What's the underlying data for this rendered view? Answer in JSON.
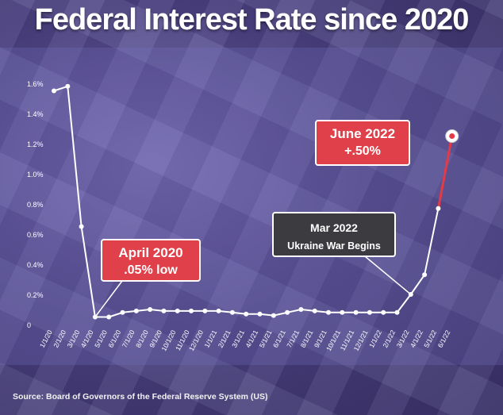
{
  "title": "Federal Interest Rate since 2020",
  "source": "Source: Board of Governors of the Federal Reserve System (US)",
  "colors": {
    "line": "#ffffff",
    "highlight_segment": "#e23a47",
    "callout_red": "#e0404a",
    "callout_dark": "#3b3b40"
  },
  "chart_data": {
    "type": "line",
    "x": [
      "1/1/20",
      "2/1/20",
      "3/1/20",
      "4/1/20",
      "5/1/20",
      "6/1/20",
      "7/1/20",
      "8/1/20",
      "9/1/20",
      "10/1/20",
      "11/1/20",
      "12/1/20",
      "1/1/21",
      "2/1/21",
      "3/1/21",
      "4/1/21",
      "5/1/21",
      "6/1/21",
      "7/1/21",
      "8/1/21",
      "9/1/21",
      "10/1/21",
      "11/1/21",
      "12/1/21",
      "1/1/22",
      "2/1/22",
      "3/1/22",
      "4/1/22",
      "5/1/22",
      "6/1/22"
    ],
    "y": [
      1.55,
      1.58,
      0.65,
      0.05,
      0.05,
      0.08,
      0.09,
      0.1,
      0.09,
      0.09,
      0.09,
      0.09,
      0.09,
      0.08,
      0.07,
      0.07,
      0.06,
      0.08,
      0.1,
      0.09,
      0.08,
      0.08,
      0.08,
      0.08,
      0.08,
      0.08,
      0.2,
      0.33,
      0.77,
      1.25
    ],
    "y_ticks": [
      "1.6%",
      "1.4%",
      "1.2%",
      "1.0%",
      "0.8%",
      "0.6%",
      "0.4%",
      "0.2%",
      "0"
    ],
    "ylim": [
      0,
      1.6
    ],
    "xlabel": "",
    "ylabel": "",
    "annotations": [
      {
        "id": "april2020",
        "line1": "April 2020",
        "line2": ".05% low",
        "style": "red",
        "target_index": 3
      },
      {
        "id": "mar2022",
        "line1": "Mar 2022",
        "line2": "Ukraine War Begins",
        "style": "dark",
        "target_index": 26
      },
      {
        "id": "june2022",
        "line1": "June 2022",
        "line2": "+.50%",
        "style": "red",
        "target_index": 29
      }
    ]
  }
}
